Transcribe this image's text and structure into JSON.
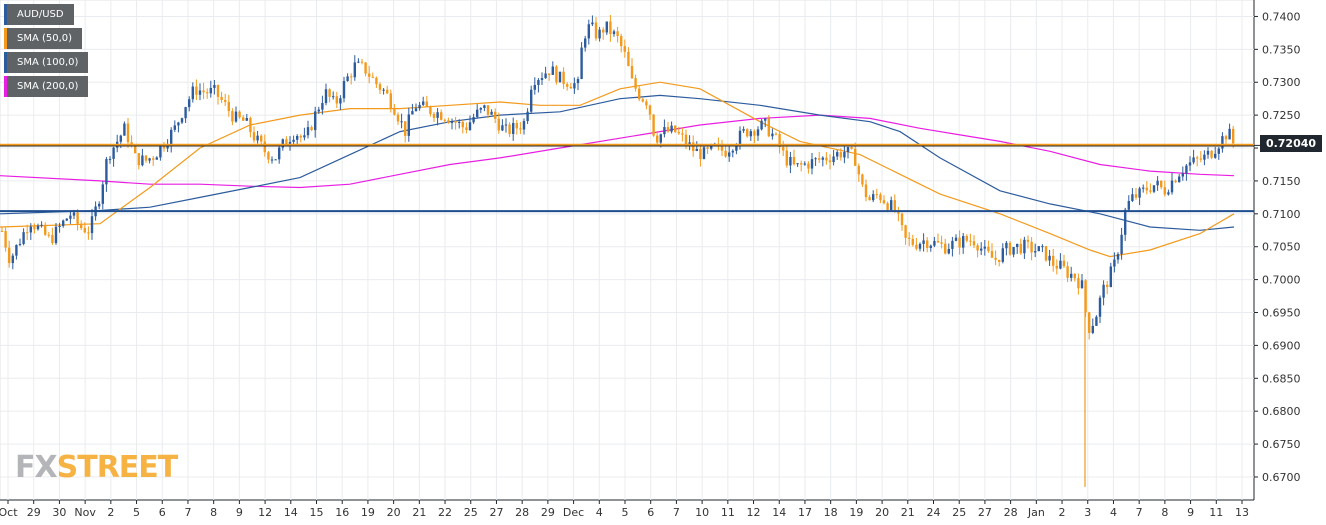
{
  "legend": [
    {
      "label": "AUD/USD",
      "color": "#2d5c9e"
    },
    {
      "label": "SMA (50,0)",
      "color": "#f39a1c"
    },
    {
      "label": "SMA (100,0)",
      "color": "#2d5c9e"
    },
    {
      "label": "SMA (200,0)",
      "color": "#e91ee3"
    }
  ],
  "price_tag": "0.72040",
  "logo": {
    "fx": "FX",
    "street": "STREET"
  },
  "colors": {
    "bull": "#2d5c9e",
    "bear": "#f39a1c",
    "sma50": "#f39a1c",
    "sma100": "#2d5c9e",
    "sma200": "#e91ee3",
    "hline_orange": "#f39a1c",
    "hline_blue": "#1f4e8f",
    "hline_dark": "#20272e",
    "grid": "#e9ecef"
  },
  "chart_data": {
    "type": "candlestick",
    "symbol": "AUD/USD",
    "ylim": [
      0.6665,
      0.7425
    ],
    "y_ticks": [
      "0.6700",
      "0.6750",
      "0.6800",
      "0.6850",
      "0.6900",
      "0.6950",
      "0.7000",
      "0.7050",
      "0.7100",
      "0.7150",
      "0.7200",
      "0.7250",
      "0.7300",
      "0.7350",
      "0.7400"
    ],
    "x_tick_labels": [
      "Oct",
      "29",
      "30",
      "Nov",
      "2",
      "5",
      "6",
      "7",
      "8",
      "9",
      "12",
      "14",
      "15",
      "16",
      "19",
      "20",
      "21",
      "22",
      "25",
      "27",
      "28",
      "29",
      "Dec",
      "4",
      "5",
      "6",
      "7",
      "10",
      "11",
      "12",
      "14",
      "17",
      "18",
      "19",
      "20",
      "21",
      "24",
      "25",
      "27",
      "28",
      "Jan",
      "2",
      "3",
      "4",
      "7",
      "8",
      "9",
      "11",
      "13"
    ],
    "horizontal_levels": [
      {
        "value": 0.7205,
        "color": "#f39a1c"
      },
      {
        "value": 0.7203,
        "color": "#20272e"
      },
      {
        "value": 0.7104,
        "color": "#1f4e8f"
      }
    ],
    "price_path": [
      [
        0,
        0.7085
      ],
      [
        10,
        0.703
      ],
      [
        20,
        0.706
      ],
      [
        30,
        0.709
      ],
      [
        40,
        0.7075
      ],
      [
        50,
        0.706
      ],
      [
        60,
        0.708
      ],
      [
        70,
        0.71
      ],
      [
        80,
        0.708
      ],
      [
        90,
        0.7075
      ],
      [
        100,
        0.713
      ],
      [
        108,
        0.719
      ],
      [
        115,
        0.7205
      ],
      [
        125,
        0.723
      ],
      [
        135,
        0.7185
      ],
      [
        145,
        0.718
      ],
      [
        155,
        0.719
      ],
      [
        165,
        0.721
      ],
      [
        175,
        0.723
      ],
      [
        185,
        0.7265
      ],
      [
        195,
        0.729
      ],
      [
        205,
        0.7285
      ],
      [
        215,
        0.7285
      ],
      [
        225,
        0.7265
      ],
      [
        235,
        0.7245
      ],
      [
        245,
        0.724
      ],
      [
        255,
        0.7215
      ],
      [
        265,
        0.7195
      ],
      [
        275,
        0.7185
      ],
      [
        285,
        0.721
      ],
      [
        295,
        0.7225
      ],
      [
        305,
        0.721
      ],
      [
        315,
        0.725
      ],
      [
        325,
        0.7285
      ],
      [
        335,
        0.7265
      ],
      [
        345,
        0.73
      ],
      [
        355,
        0.7325
      ],
      [
        365,
        0.732
      ],
      [
        375,
        0.73
      ],
      [
        385,
        0.7285
      ],
      [
        395,
        0.726
      ],
      [
        405,
        0.7225
      ],
      [
        415,
        0.7265
      ],
      [
        425,
        0.726
      ],
      [
        435,
        0.7255
      ],
      [
        445,
        0.725
      ],
      [
        455,
        0.724
      ],
      [
        465,
        0.723
      ],
      [
        475,
        0.725
      ],
      [
        485,
        0.726
      ],
      [
        495,
        0.7245
      ],
      [
        505,
        0.7225
      ],
      [
        515,
        0.723
      ],
      [
        525,
        0.724
      ],
      [
        532,
        0.7305
      ],
      [
        540,
        0.731
      ],
      [
        550,
        0.732
      ],
      [
        560,
        0.7305
      ],
      [
        570,
        0.73
      ],
      [
        578,
        0.7295
      ],
      [
        583,
        0.737
      ],
      [
        590,
        0.7385
      ],
      [
        598,
        0.737
      ],
      [
        605,
        0.7385
      ],
      [
        612,
        0.7375
      ],
      [
        618,
        0.7365
      ],
      [
        625,
        0.734
      ],
      [
        632,
        0.73
      ],
      [
        640,
        0.728
      ],
      [
        648,
        0.727
      ],
      [
        655,
        0.7215
      ],
      [
        665,
        0.7225
      ],
      [
        675,
        0.7225
      ],
      [
        685,
        0.721
      ],
      [
        695,
        0.7195
      ],
      [
        705,
        0.719
      ],
      [
        715,
        0.72
      ],
      [
        725,
        0.7195
      ],
      [
        735,
        0.721
      ],
      [
        745,
        0.7225
      ],
      [
        755,
        0.723
      ],
      [
        765,
        0.7235
      ],
      [
        775,
        0.7215
      ],
      [
        785,
        0.7185
      ],
      [
        795,
        0.717
      ],
      [
        805,
        0.7175
      ],
      [
        815,
        0.718
      ],
      [
        825,
        0.7185
      ],
      [
        835,
        0.719
      ],
      [
        845,
        0.7195
      ],
      [
        855,
        0.7185
      ],
      [
        862,
        0.714
      ],
      [
        870,
        0.712
      ],
      [
        878,
        0.713
      ],
      [
        885,
        0.712
      ],
      [
        895,
        0.7105
      ],
      [
        905,
        0.706
      ],
      [
        915,
        0.7055
      ],
      [
        925,
        0.706
      ],
      [
        935,
        0.7055
      ],
      [
        945,
        0.705
      ],
      [
        955,
        0.7055
      ],
      [
        965,
        0.706
      ],
      [
        975,
        0.706
      ],
      [
        985,
        0.704
      ],
      [
        995,
        0.703
      ],
      [
        1005,
        0.7045
      ],
      [
        1015,
        0.705
      ],
      [
        1025,
        0.705
      ],
      [
        1035,
        0.7045
      ],
      [
        1045,
        0.704
      ],
      [
        1052,
        0.7025
      ],
      [
        1060,
        0.702
      ],
      [
        1068,
        0.701
      ],
      [
        1075,
        0.7005
      ],
      [
        1082,
        0.699
      ],
      [
        1088,
        0.6925
      ],
      [
        1095,
        0.694
      ],
      [
        1102,
        0.698
      ],
      [
        1108,
        0.7
      ],
      [
        1114,
        0.702
      ],
      [
        1120,
        0.706
      ],
      [
        1126,
        0.711
      ],
      [
        1133,
        0.7125
      ],
      [
        1140,
        0.713
      ],
      [
        1148,
        0.714
      ],
      [
        1156,
        0.7145
      ],
      [
        1164,
        0.7135
      ],
      [
        1172,
        0.715
      ],
      [
        1180,
        0.7165
      ],
      [
        1188,
        0.7175
      ],
      [
        1196,
        0.718
      ],
      [
        1204,
        0.7185
      ],
      [
        1212,
        0.7195
      ],
      [
        1220,
        0.721
      ],
      [
        1228,
        0.7225
      ],
      [
        1234,
        0.7205
      ]
    ],
    "spike": {
      "x": 1085,
      "low": 0.6685
    },
    "sma50": [
      [
        0,
        0.708
      ],
      [
        100,
        0.7085
      ],
      [
        150,
        0.714
      ],
      [
        200,
        0.72
      ],
      [
        250,
        0.7235
      ],
      [
        300,
        0.725
      ],
      [
        350,
        0.726
      ],
      [
        400,
        0.726
      ],
      [
        450,
        0.7265
      ],
      [
        500,
        0.727
      ],
      [
        540,
        0.7265
      ],
      [
        580,
        0.7265
      ],
      [
        620,
        0.729
      ],
      [
        660,
        0.73
      ],
      [
        700,
        0.729
      ],
      [
        760,
        0.724
      ],
      [
        800,
        0.721
      ],
      [
        860,
        0.719
      ],
      [
        900,
        0.716
      ],
      [
        940,
        0.713
      ],
      [
        1000,
        0.71
      ],
      [
        1050,
        0.707
      ],
      [
        1090,
        0.7045
      ],
      [
        1110,
        0.7035
      ],
      [
        1150,
        0.7045
      ],
      [
        1200,
        0.707
      ],
      [
        1234,
        0.71
      ]
    ],
    "sma100": [
      [
        0,
        0.71
      ],
      [
        100,
        0.7105
      ],
      [
        150,
        0.711
      ],
      [
        200,
        0.7125
      ],
      [
        250,
        0.714
      ],
      [
        300,
        0.7155
      ],
      [
        350,
        0.719
      ],
      [
        400,
        0.7225
      ],
      [
        450,
        0.724
      ],
      [
        500,
        0.725
      ],
      [
        560,
        0.7255
      ],
      [
        620,
        0.7275
      ],
      [
        660,
        0.728
      ],
      [
        700,
        0.7275
      ],
      [
        760,
        0.7265
      ],
      [
        820,
        0.725
      ],
      [
        870,
        0.724
      ],
      [
        900,
        0.7225
      ],
      [
        940,
        0.7185
      ],
      [
        1000,
        0.7135
      ],
      [
        1050,
        0.7115
      ],
      [
        1100,
        0.71
      ],
      [
        1150,
        0.708
      ],
      [
        1200,
        0.7075
      ],
      [
        1234,
        0.708
      ]
    ],
    "sma200": [
      [
        0,
        0.7158
      ],
      [
        100,
        0.715
      ],
      [
        150,
        0.7145
      ],
      [
        200,
        0.7145
      ],
      [
        250,
        0.7142
      ],
      [
        300,
        0.714
      ],
      [
        350,
        0.7145
      ],
      [
        400,
        0.716
      ],
      [
        450,
        0.7175
      ],
      [
        500,
        0.7185
      ],
      [
        560,
        0.72
      ],
      [
        620,
        0.7215
      ],
      [
        660,
        0.7225
      ],
      [
        700,
        0.7235
      ],
      [
        760,
        0.7245
      ],
      [
        820,
        0.725
      ],
      [
        870,
        0.7245
      ],
      [
        920,
        0.723
      ],
      [
        960,
        0.722
      ],
      [
        1000,
        0.721
      ],
      [
        1050,
        0.7195
      ],
      [
        1100,
        0.7175
      ],
      [
        1150,
        0.7165
      ],
      [
        1200,
        0.716
      ],
      [
        1234,
        0.7158
      ]
    ]
  }
}
